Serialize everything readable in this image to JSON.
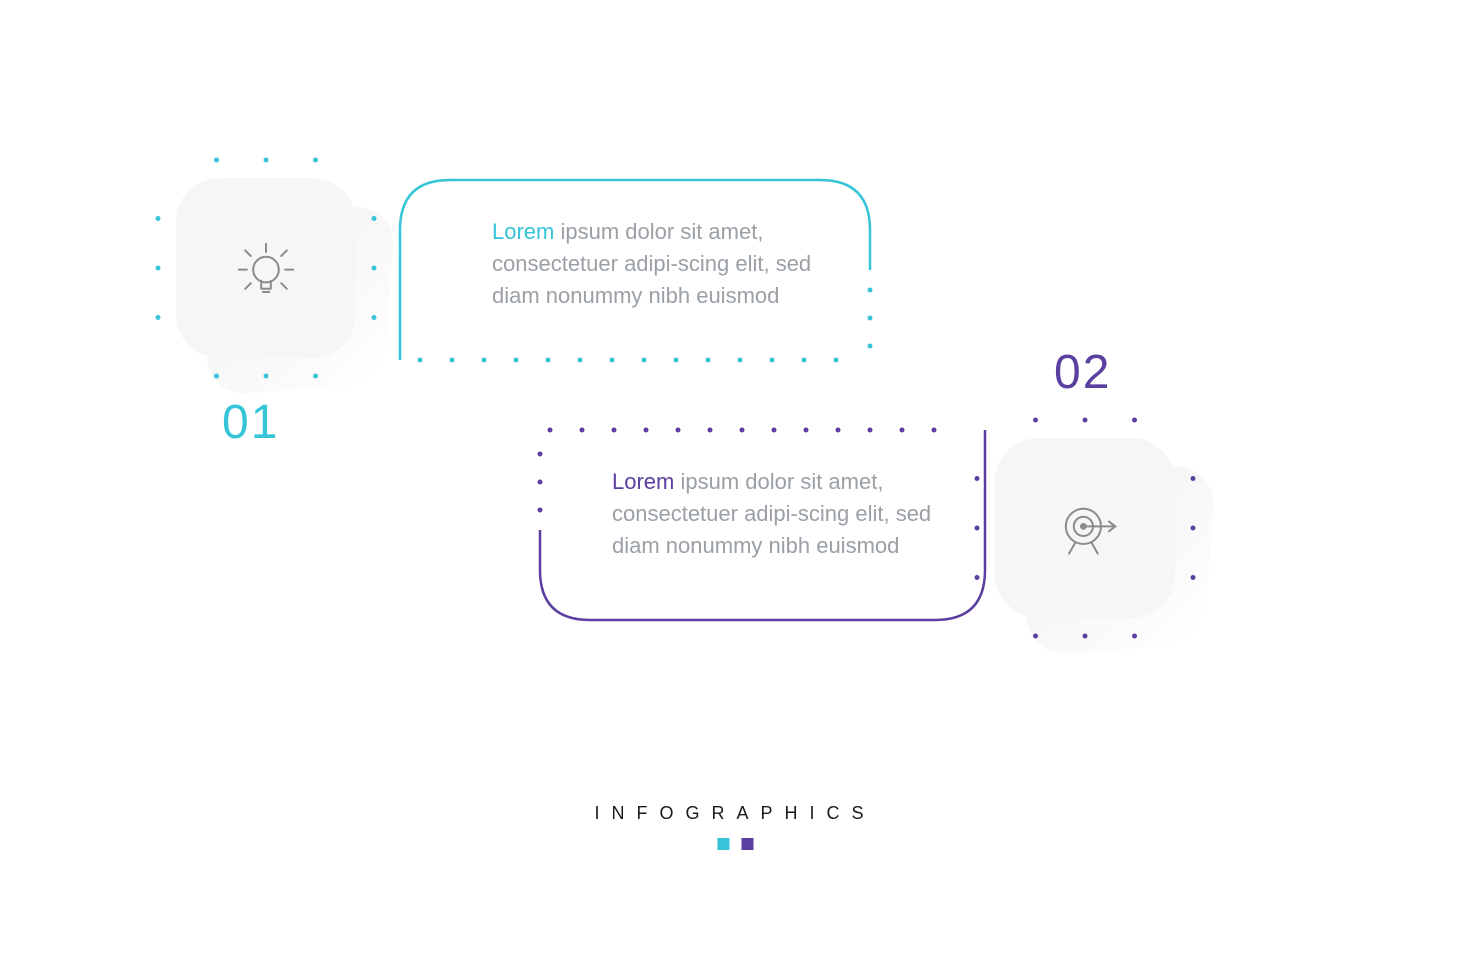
{
  "type": "infographic",
  "background_color": "#ffffff",
  "steps": [
    {
      "number": "01",
      "accent_color": "#35c4d8",
      "icon": "lightbulb",
      "icon_color": "#8c8c8c",
      "desc_first": "Lorem",
      "desc_rest": "ipsum dolor sit amet, consectetuer adipi-scing elit, sed diam nonummy nibh euismod",
      "badge_bg": "#f6f6f6",
      "badge_radius": 44
    },
    {
      "number": "02",
      "accent_color": "#5a3fa0",
      "icon": "target",
      "icon_color": "#8c8c8c",
      "desc_first": "Lorem",
      "desc_rest": "ipsum dolor sit amet, consectetuer adipi-scing elit, sed diam nonummy nibh euismod",
      "badge_bg": "#f6f6f6",
      "badge_radius": 44
    }
  ],
  "stroke_width": 2.5,
  "dot_radius": 2.5,
  "number_fontsize": 48,
  "desc_fontsize": 22,
  "desc_color": "#9aa0a6",
  "footer": {
    "title": "INFOGRAPHICS",
    "title_letter_spacing": 12,
    "title_fontsize": 18,
    "squares": [
      "#35c4d8",
      "#5a3fa0"
    ],
    "square_size": 12
  }
}
